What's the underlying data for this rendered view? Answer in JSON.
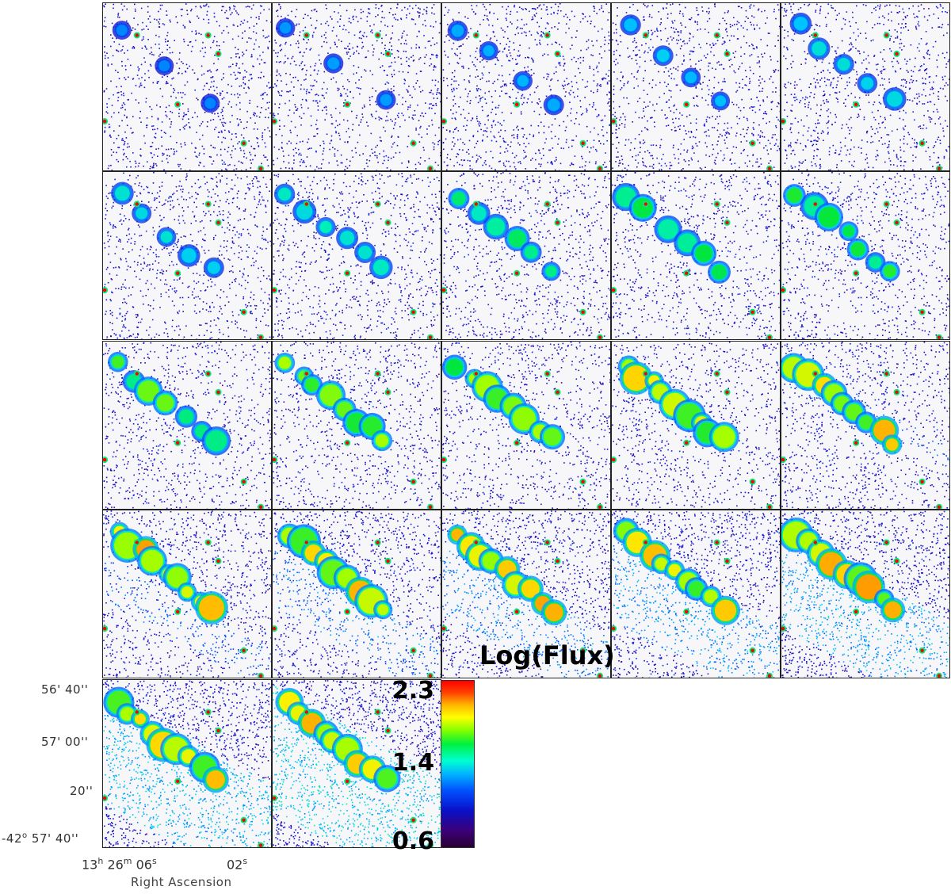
{
  "chart_data": {
    "type": "heatmap",
    "description_panels": 22,
    "panel_grid": {
      "columns": 5,
      "rows": 5,
      "filled_last_row": 2
    },
    "colorbar": {
      "title": "Log(Flux)",
      "ticks": [
        "2.3",
        "1.4",
        "0.6"
      ],
      "range": [
        0.6,
        2.3
      ],
      "colormap": "rainbow"
    },
    "axes": {
      "xlabel": "Right Ascension",
      "x_ticks": [
        {
          "label_h": "13",
          "label_m": "26",
          "label_s": "06",
          "sup_h": "h",
          "sup_m": "m",
          "sup_s": "s"
        },
        {
          "label_s": "02",
          "sup_s": "s"
        }
      ],
      "y_ticks": [
        "56' 40''",
        "57' 00''",
        "20''",
        "57' 40''"
      ],
      "y_first_deg": "-42",
      "y_deg_sup": "o"
    },
    "colors": {
      "low": "#2a0078",
      "mid": "#00c0ff",
      "high": "#ff0000",
      "background": "#f7f7fa"
    }
  }
}
